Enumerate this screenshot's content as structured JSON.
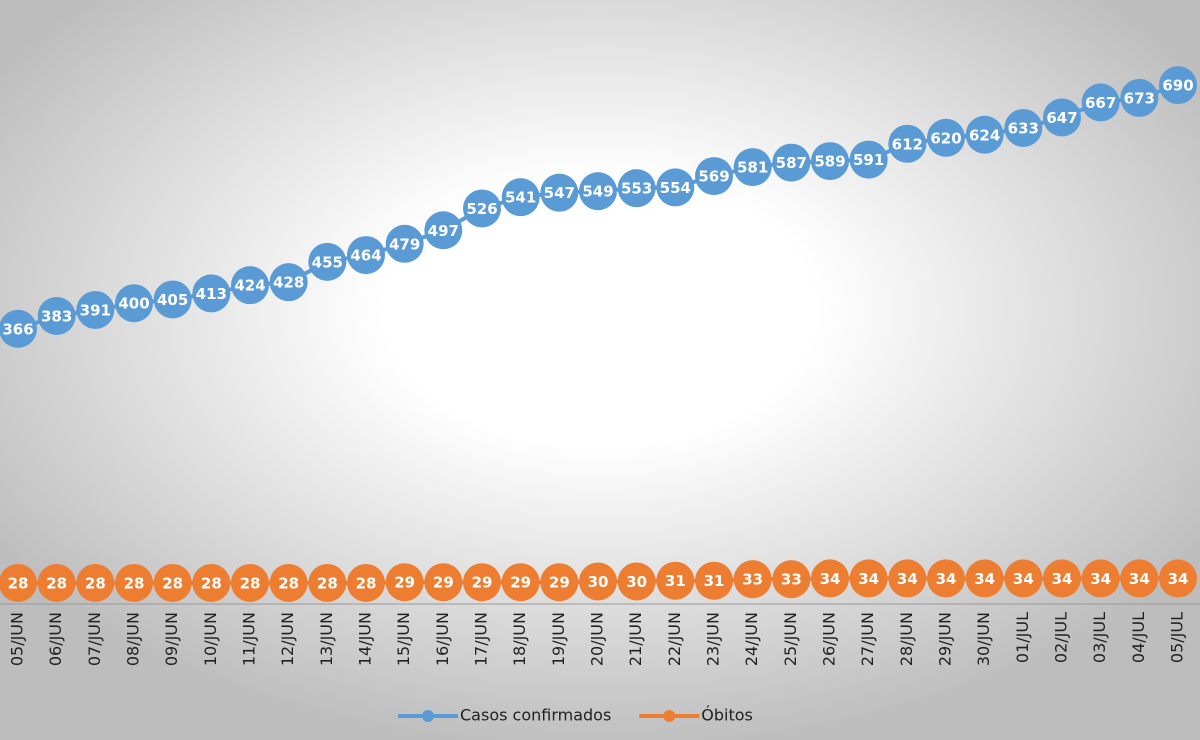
{
  "chart_data": {
    "type": "line",
    "categories": [
      "05/JUN",
      "06/JUN",
      "07/JUN",
      "08/JUN",
      "09/JUN",
      "10/JUN",
      "11/JUN",
      "12/JUN",
      "13/JUN",
      "14/JUN",
      "15/JUN",
      "16/JUN",
      "17/JUN",
      "18/JUN",
      "19/JUN",
      "20/JUN",
      "21/JUN",
      "22/JUN",
      "23/JUN",
      "24/JUN",
      "25/JUN",
      "26/JUN",
      "27/JUN",
      "28/JUN",
      "29/JUN",
      "30/JUN",
      "01/JUL",
      "02/JUL",
      "03/JUL",
      "04/JUL",
      "05/JUL"
    ],
    "series": [
      {
        "name": "Casos confirmados",
        "color": "#5b9bd5",
        "values": [
          366,
          383,
          391,
          400,
          405,
          413,
          424,
          428,
          455,
          464,
          479,
          497,
          526,
          541,
          547,
          549,
          553,
          554,
          569,
          581,
          587,
          589,
          591,
          612,
          620,
          624,
          633,
          647,
          667,
          673,
          690
        ]
      },
      {
        "name": "Óbitos",
        "color": "#ed7d31",
        "values": [
          28,
          28,
          28,
          28,
          28,
          28,
          28,
          28,
          28,
          28,
          29,
          29,
          29,
          29,
          29,
          30,
          30,
          31,
          31,
          33,
          33,
          34,
          34,
          34,
          34,
          34,
          34,
          34,
          34,
          34,
          34
        ]
      }
    ],
    "ylim": [
      0,
      750
    ],
    "legend": "bottom"
  }
}
